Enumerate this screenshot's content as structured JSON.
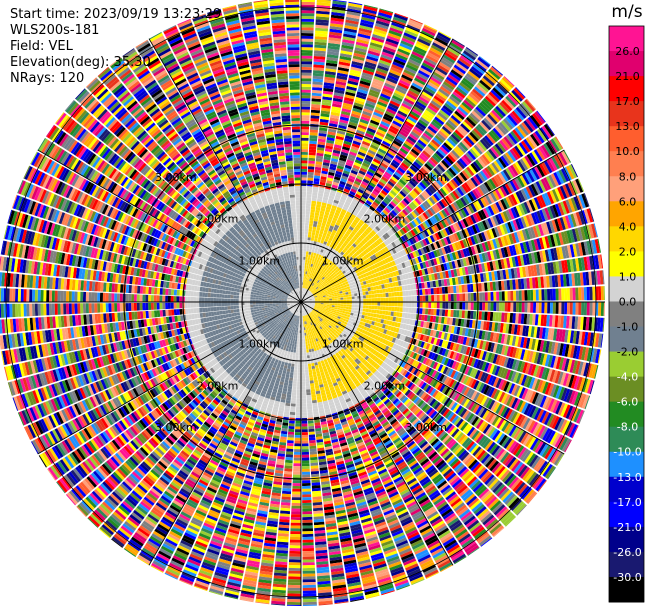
{
  "header": {
    "start_time": "Start time: 2023/09/19 13:23:29",
    "site": "WLS200s-181",
    "field": "Field: VEL",
    "elevation": "Elevation(deg): 35.30",
    "nrays": "NRays: 120"
  },
  "colorbar": {
    "unit": "m/s",
    "ticks": [
      "26.0",
      "21.0",
      "17.0",
      "13.0",
      "10.0",
      "8.0",
      "6.0",
      "4.0",
      "2.0",
      "1.0",
      "0.0",
      "-1.0",
      "-2.0",
      "-4.0",
      "-6.0",
      "-8.0",
      "-10.0",
      "-13.0",
      "-17.0",
      "-21.0",
      "-26.0",
      "-30.0"
    ],
    "colors": [
      "#ff1493",
      "#e0006e",
      "#ff0000",
      "#e8341c",
      "#ff5e2e",
      "#ff7f50",
      "#ffa07a",
      "#ffa500",
      "#ffd700",
      "#ffff00",
      "#d3d3d3",
      "#808080",
      "#708090",
      "#9acd32",
      "#6b8e23",
      "#228b22",
      "#2e8b57",
      "#1e90ff",
      "#0000cd",
      "#0000ff",
      "#00008b",
      "#191970",
      "#000000"
    ]
  },
  "chart_data": {
    "type": "heatmap",
    "projection": "polar PPI",
    "field": "VEL",
    "unit": "m/s",
    "nrays": 120,
    "range_rings_km": [
      1.0,
      2.0,
      3.0
    ],
    "ring_labels": [
      "1.00km",
      "2.00km",
      "3.00km"
    ],
    "spokes_deg": [
      0,
      30,
      60,
      90,
      120,
      150,
      180,
      210,
      240,
      270,
      300,
      330
    ],
    "velocity_pattern": [
      {
        "range_km": [
          0.0,
          0.25
        ],
        "value": 0.0
      },
      {
        "range_km": [
          0.25,
          0.85
        ],
        "upwind_value": -2.0,
        "downwind_value": 2.0
      },
      {
        "range_km": [
          0.85,
          1.05
        ],
        "value": 0.0
      },
      {
        "range_km": [
          1.05,
          1.75
        ],
        "upwind_value": -2.0,
        "downwind_value": 2.0
      },
      {
        "range_km": [
          1.75,
          1.95
        ],
        "value": 0.0
      },
      {
        "range_km": [
          1.95,
          4.0
        ],
        "value": "noise"
      }
    ]
  }
}
